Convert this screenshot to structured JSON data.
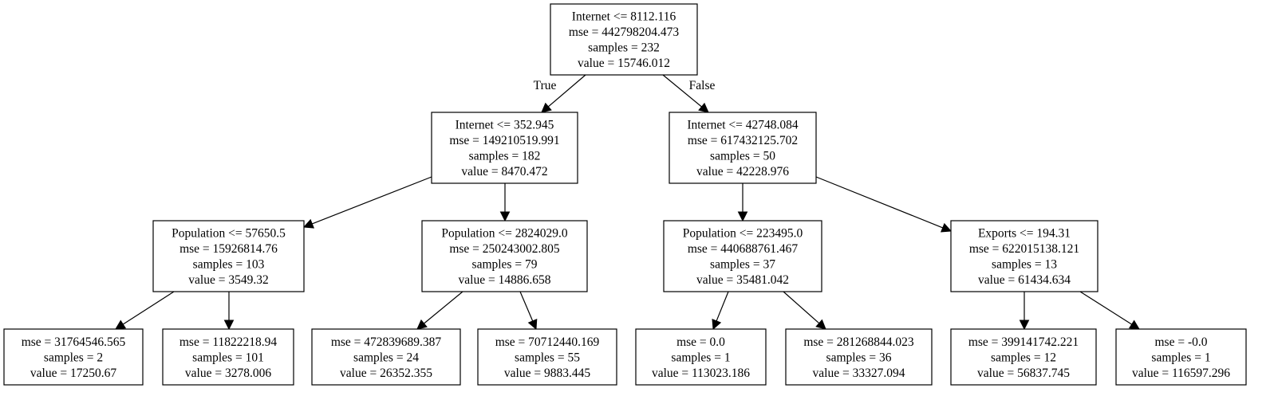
{
  "tree": {
    "nodes": [
      {
        "id": "n0",
        "lines": [
          "Internet <= 8112.116",
          "mse = 442798204.473",
          "samples = 232",
          "value = 15746.012"
        ]
      },
      {
        "id": "n1",
        "lines": [
          "Internet <= 352.945",
          "mse = 149210519.991",
          "samples = 182",
          "value = 8470.472"
        ]
      },
      {
        "id": "n2",
        "lines": [
          "Internet <= 42748.084",
          "mse = 617432125.702",
          "samples = 50",
          "value = 42228.976"
        ]
      },
      {
        "id": "n3",
        "lines": [
          "Population <= 57650.5",
          "mse = 15926814.76",
          "samples = 103",
          "value = 3549.32"
        ]
      },
      {
        "id": "n4",
        "lines": [
          "Population <= 2824029.0",
          "mse = 250243002.805",
          "samples = 79",
          "value = 14886.658"
        ]
      },
      {
        "id": "n5",
        "lines": [
          "Population <= 223495.0",
          "mse = 440688761.467",
          "samples = 37",
          "value = 35481.042"
        ]
      },
      {
        "id": "n6",
        "lines": [
          "Exports <= 194.31",
          "mse = 622015138.121",
          "samples = 13",
          "value = 61434.634"
        ]
      },
      {
        "id": "n7",
        "lines": [
          "mse = 31764546.565",
          "samples = 2",
          "value = 17250.67"
        ]
      },
      {
        "id": "n8",
        "lines": [
          "mse = 11822218.94",
          "samples = 101",
          "value = 3278.006"
        ]
      },
      {
        "id": "n9",
        "lines": [
          "mse = 472839689.387",
          "samples = 24",
          "value = 26352.355"
        ]
      },
      {
        "id": "n10",
        "lines": [
          "mse = 70712440.169",
          "samples = 55",
          "value = 9883.445"
        ]
      },
      {
        "id": "n11",
        "lines": [
          "mse = 0.0",
          "samples = 1",
          "value = 113023.186"
        ]
      },
      {
        "id": "n12",
        "lines": [
          "mse = 281268844.023",
          "samples = 36",
          "value = 33327.094"
        ]
      },
      {
        "id": "n13",
        "lines": [
          "mse = 399141742.221",
          "samples = 12",
          "value = 56837.745"
        ]
      },
      {
        "id": "n14",
        "lines": [
          "mse = -0.0",
          "samples = 1",
          "value = 116597.296"
        ]
      }
    ],
    "edges": [
      {
        "from": "n0",
        "to": "n1",
        "label": "True"
      },
      {
        "from": "n0",
        "to": "n2",
        "label": "False"
      },
      {
        "from": "n1",
        "to": "n3"
      },
      {
        "from": "n1",
        "to": "n4"
      },
      {
        "from": "n2",
        "to": "n5"
      },
      {
        "from": "n2",
        "to": "n6"
      },
      {
        "from": "n3",
        "to": "n7"
      },
      {
        "from": "n3",
        "to": "n8"
      },
      {
        "from": "n4",
        "to": "n9"
      },
      {
        "from": "n4",
        "to": "n10"
      },
      {
        "from": "n5",
        "to": "n11"
      },
      {
        "from": "n5",
        "to": "n12"
      },
      {
        "from": "n6",
        "to": "n13"
      },
      {
        "from": "n6",
        "to": "n14"
      }
    ]
  }
}
